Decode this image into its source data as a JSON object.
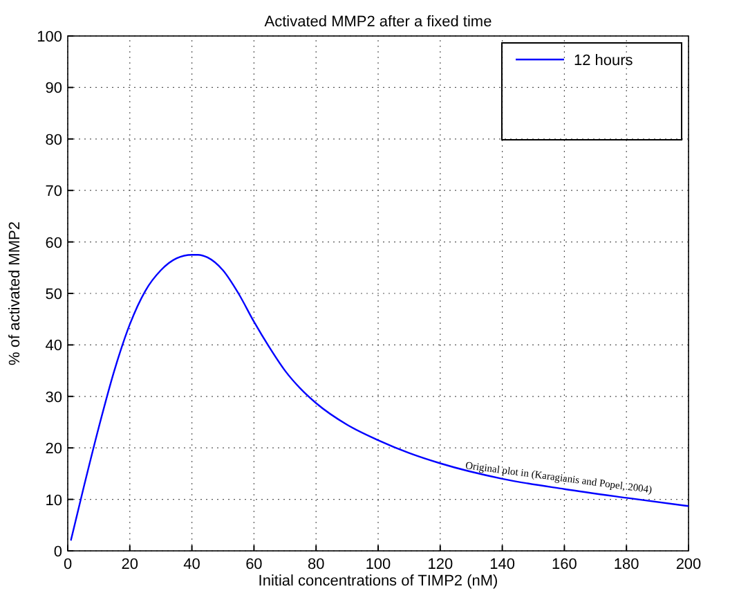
{
  "chart_data": {
    "type": "line",
    "title": "Activated MMP2 after a fixed time",
    "xlabel": "Initial concentrations of TIMP2 (nM)",
    "ylabel": "% of activated MMP2",
    "xlim": [
      0,
      200
    ],
    "ylim": [
      0,
      100
    ],
    "xticks": [
      0,
      20,
      40,
      60,
      80,
      100,
      120,
      140,
      160,
      180,
      200
    ],
    "yticks": [
      0,
      10,
      20,
      30,
      40,
      50,
      60,
      70,
      80,
      90,
      100
    ],
    "grid": true,
    "legend": "top right",
    "series": [
      {
        "name": "12 hours",
        "color": "#0000ff",
        "x": [
          1,
          5,
          10,
          15,
          20,
          25,
          30,
          35,
          40,
          42,
          45,
          50,
          55,
          60,
          65,
          70,
          75,
          80,
          90,
          100,
          110,
          120,
          140,
          160,
          180,
          200
        ],
        "values": [
          2,
          12,
          24,
          35,
          44,
          50.5,
          54.5,
          56.8,
          57.5,
          57.5,
          57,
          54.5,
          50,
          44.5,
          39.5,
          35,
          31.5,
          28.7,
          24.5,
          21.5,
          19,
          17,
          14,
          12,
          10.3,
          8.7
        ]
      }
    ],
    "annotations": [
      {
        "text": "Original plot in (Karagianis and Popel, 2004)",
        "x": 128,
        "y": 16
      }
    ]
  }
}
